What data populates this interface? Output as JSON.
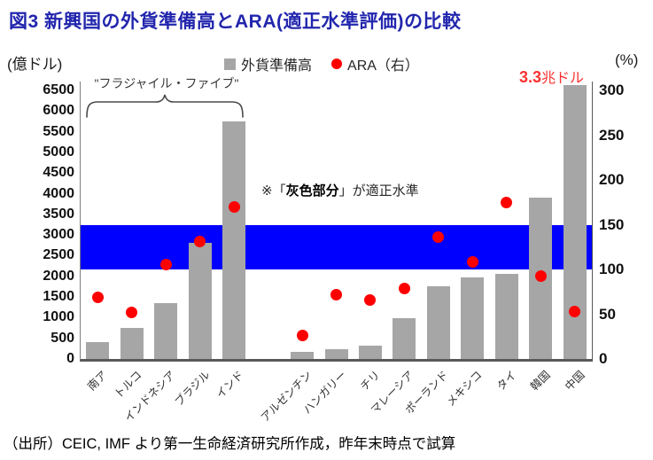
{
  "title": "図3 新興国の外貨準備高とARA(適正水準評価)の比較",
  "legend": {
    "bars_label": "外貨準備高",
    "dots_label": "ARA（右）"
  },
  "left_axis_unit": "(億ドル)",
  "right_axis_unit": "(%)",
  "annotations": {
    "fragile_five_label": "\"フラジャイル・ファイブ\"",
    "band_note_prefix": "※「",
    "band_note_bold": "灰色部分",
    "band_note_suffix": "」が適正水準",
    "china_value_num": "3.3",
    "china_value_unit": "兆ドル"
  },
  "source_line": "（出所）CEIC, IMF より第一生命経済研究所作成，昨年末時点で試算",
  "colors": {
    "title": "#2226ad",
    "bar": "#a6a6a6",
    "dot": "#fe0000",
    "band": "#0000fe",
    "china_note": "#fa3232"
  },
  "chart_data": {
    "type": "bar",
    "title": "新興国の外貨準備高とARA(適正水準評価)の比較",
    "categories": [
      "南ア",
      "トルコ",
      "インドネシア",
      "ブラジル",
      "インド",
      "アルゼンチン",
      "ハンガリー",
      "チリ",
      "マレーシア",
      "ポーランド",
      "メキシコ",
      "タイ",
      "韓国",
      "中国"
    ],
    "series": [
      {
        "name": "外貨準備高",
        "type": "bar",
        "axis": "left",
        "unit": "億ドル",
        "values": [
          400,
          750,
          1350,
          2800,
          5750,
          180,
          240,
          330,
          980,
          1750,
          1980,
          2050,
          3900,
          33000
        ]
      },
      {
        "name": "ARA（右）",
        "type": "scatter",
        "axis": "right",
        "unit": "%",
        "values": [
          69,
          52,
          105,
          131,
          170,
          26,
          72,
          66,
          79,
          136,
          108,
          175,
          93,
          53
        ]
      }
    ],
    "left_axis": {
      "label": "(億ドル)",
      "min": 0,
      "max": 6500,
      "step": 500
    },
    "right_axis": {
      "label": "(%)",
      "min": 0,
      "max": 300,
      "step": 50
    },
    "band": {
      "axis": "right",
      "from": 100,
      "to": 150,
      "meaning": "適正水準"
    },
    "gap_after_index": 4,
    "fragile_five_span": [
      0,
      4
    ],
    "display_cap_left": 6500,
    "grid": false,
    "legend_position": "top"
  }
}
